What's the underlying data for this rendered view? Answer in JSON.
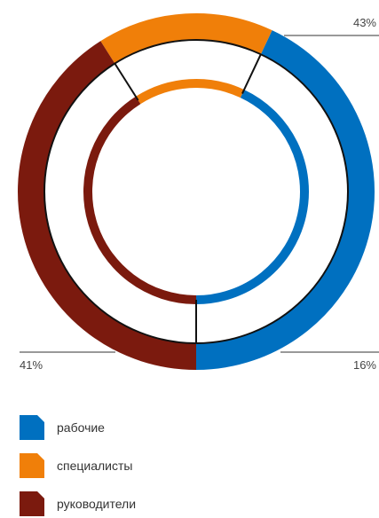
{
  "chart_data": {
    "type": "pie",
    "categories": [
      "рабочие",
      "специалисты",
      "руководители"
    ],
    "values": [
      43,
      16,
      41
    ],
    "value_labels": [
      "43%",
      "16%",
      "41%"
    ],
    "colors": [
      "#0070c0",
      "#f07f09",
      "#7b1a0e"
    ],
    "title": "",
    "legend_position": "bottom-left"
  },
  "legend": [
    {
      "label": "рабочие",
      "color": "#0070c0"
    },
    {
      "label": "специалисты",
      "color": "#f07f09"
    },
    {
      "label": "руководители",
      "color": "#7b1a0e"
    }
  ]
}
